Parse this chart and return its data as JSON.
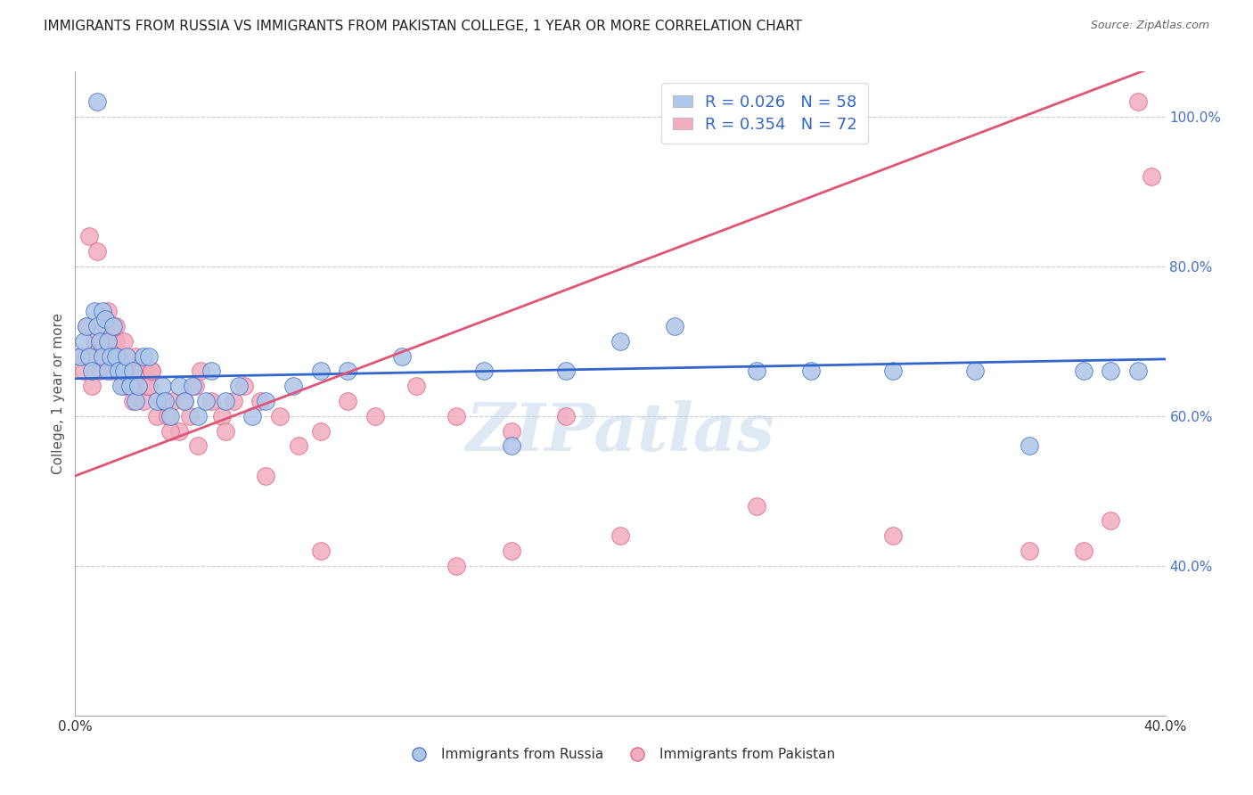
{
  "title": "IMMIGRANTS FROM RUSSIA VS IMMIGRANTS FROM PAKISTAN COLLEGE, 1 YEAR OR MORE CORRELATION CHART",
  "source": "Source: ZipAtlas.com",
  "ylabel": "College, 1 year or more",
  "xlim": [
    0.0,
    0.4
  ],
  "ylim": [
    0.2,
    1.06
  ],
  "x_ticks": [
    0.0,
    0.05,
    0.1,
    0.15,
    0.2,
    0.25,
    0.3,
    0.35,
    0.4
  ],
  "x_tick_labels": [
    "0.0%",
    "",
    "",
    "",
    "",
    "",
    "",
    "",
    "40.0%"
  ],
  "y_ticks_right": [
    0.4,
    0.6,
    0.8,
    1.0
  ],
  "y_tick_labels_right": [
    "40.0%",
    "60.0%",
    "80.0%",
    "100.0%"
  ],
  "legend_R_russia": "0.026",
  "legend_N_russia": "58",
  "legend_R_pakistan": "0.354",
  "legend_N_pakistan": "72",
  "russia_color": "#aec6e8",
  "pakistan_color": "#f2adc0",
  "russia_line_color": "#3366cc",
  "pakistan_line_color": "#e05575",
  "watermark": "ZIPatlas",
  "russia_x": [
    0.002,
    0.003,
    0.004,
    0.005,
    0.006,
    0.007,
    0.008,
    0.009,
    0.01,
    0.01,
    0.011,
    0.012,
    0.012,
    0.013,
    0.014,
    0.015,
    0.016,
    0.017,
    0.018,
    0.019,
    0.02,
    0.021,
    0.022,
    0.023,
    0.025,
    0.027,
    0.03,
    0.032,
    0.033,
    0.035,
    0.038,
    0.04,
    0.043,
    0.045,
    0.048,
    0.05,
    0.055,
    0.06,
    0.065,
    0.07,
    0.08,
    0.09,
    0.1,
    0.12,
    0.15,
    0.16,
    0.18,
    0.2,
    0.22,
    0.25,
    0.27,
    0.3,
    0.33,
    0.35,
    0.37,
    0.38,
    0.39,
    0.008
  ],
  "russia_y": [
    0.68,
    0.7,
    0.72,
    0.68,
    0.66,
    0.74,
    0.72,
    0.7,
    0.68,
    0.74,
    0.73,
    0.7,
    0.66,
    0.68,
    0.72,
    0.68,
    0.66,
    0.64,
    0.66,
    0.68,
    0.64,
    0.66,
    0.62,
    0.64,
    0.68,
    0.68,
    0.62,
    0.64,
    0.62,
    0.6,
    0.64,
    0.62,
    0.64,
    0.6,
    0.62,
    0.66,
    0.62,
    0.64,
    0.6,
    0.62,
    0.64,
    0.66,
    0.66,
    0.68,
    0.66,
    0.56,
    0.66,
    0.7,
    0.72,
    0.66,
    0.66,
    0.66,
    0.66,
    0.56,
    0.66,
    0.66,
    0.66,
    1.02
  ],
  "pakistan_x": [
    0.002,
    0.003,
    0.004,
    0.005,
    0.006,
    0.007,
    0.008,
    0.009,
    0.01,
    0.011,
    0.012,
    0.013,
    0.014,
    0.015,
    0.016,
    0.017,
    0.018,
    0.019,
    0.02,
    0.021,
    0.022,
    0.023,
    0.024,
    0.025,
    0.026,
    0.027,
    0.028,
    0.03,
    0.032,
    0.034,
    0.036,
    0.038,
    0.04,
    0.042,
    0.044,
    0.046,
    0.05,
    0.054,
    0.058,
    0.062,
    0.068,
    0.075,
    0.082,
    0.09,
    0.1,
    0.11,
    0.125,
    0.14,
    0.16,
    0.18,
    0.005,
    0.008,
    0.012,
    0.015,
    0.018,
    0.022,
    0.028,
    0.035,
    0.045,
    0.055,
    0.07,
    0.09,
    0.14,
    0.16,
    0.2,
    0.25,
    0.3,
    0.35,
    0.37,
    0.38,
    0.39,
    0.395
  ],
  "pakistan_y": [
    0.68,
    0.66,
    0.72,
    0.68,
    0.64,
    0.7,
    0.68,
    0.66,
    0.7,
    0.72,
    0.7,
    0.68,
    0.66,
    0.7,
    0.68,
    0.66,
    0.64,
    0.66,
    0.64,
    0.62,
    0.66,
    0.64,
    0.66,
    0.62,
    0.64,
    0.64,
    0.66,
    0.6,
    0.62,
    0.6,
    0.62,
    0.58,
    0.62,
    0.6,
    0.64,
    0.66,
    0.62,
    0.6,
    0.62,
    0.64,
    0.62,
    0.6,
    0.56,
    0.58,
    0.62,
    0.6,
    0.64,
    0.6,
    0.58,
    0.6,
    0.84,
    0.82,
    0.74,
    0.72,
    0.7,
    0.68,
    0.66,
    0.58,
    0.56,
    0.58,
    0.52,
    0.42,
    0.4,
    0.42,
    0.44,
    0.48,
    0.44,
    0.42,
    0.42,
    0.46,
    1.02,
    0.92
  ]
}
